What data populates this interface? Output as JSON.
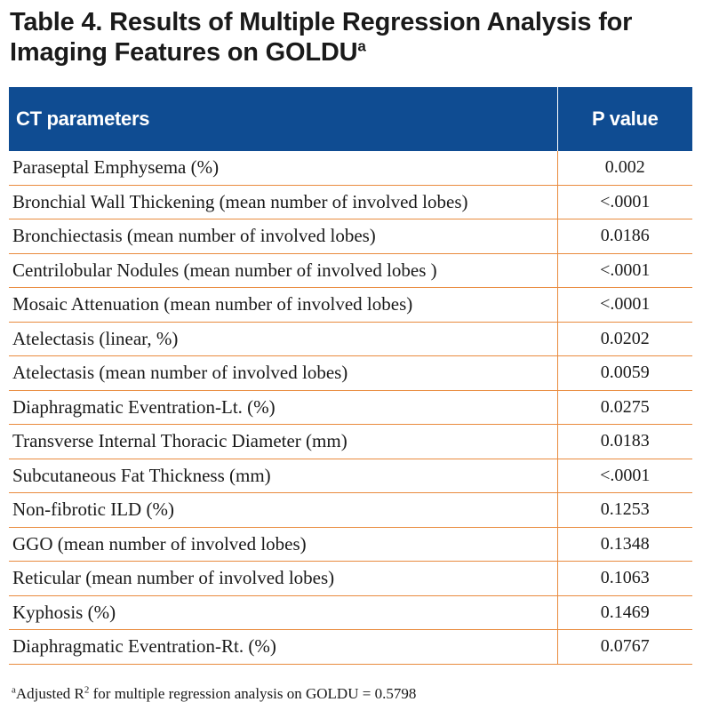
{
  "table": {
    "title": "Table 4. Results of Multiple Regression Analysis for Imaging Features on GOLDU",
    "title_superscript": "a",
    "header_color": "#0f4c92",
    "rule_color": "#e98b3e",
    "columns": [
      "CT parameters",
      "P value"
    ],
    "rows": [
      {
        "parameter": "Paraseptal Emphysema (%)",
        "p_value": "0.002"
      },
      {
        "parameter": "Bronchial Wall Thickening (mean number of involved lobes)",
        "p_value": "<.0001"
      },
      {
        "parameter": "Bronchiectasis (mean number of involved lobes)",
        "p_value": "0.0186"
      },
      {
        "parameter": "Centrilobular Nodules (mean number of involved lobes )",
        "p_value": "<.0001"
      },
      {
        "parameter": "Mosaic Attenuation (mean number of involved lobes)",
        "p_value": "<.0001"
      },
      {
        "parameter": "Atelectasis (linear, %)",
        "p_value": "0.0202"
      },
      {
        "parameter": "Atelectasis (mean number of involved lobes)",
        "p_value": "0.0059"
      },
      {
        "parameter": "Diaphragmatic Eventration-Lt. (%)",
        "p_value": "0.0275"
      },
      {
        "parameter": "Transverse Internal Thoracic Diameter (mm)",
        "p_value": "0.0183"
      },
      {
        "parameter": "Subcutaneous Fat Thickness (mm)",
        "p_value": "<.0001"
      },
      {
        "parameter": "Non-fibrotic ILD (%)",
        "p_value": "0.1253"
      },
      {
        "parameter": "GGO (mean number of involved lobes)",
        "p_value": "0.1348"
      },
      {
        "parameter": "Reticular (mean number of involved lobes)",
        "p_value": "0.1063"
      },
      {
        "parameter": "Kyphosis (%)",
        "p_value": "0.1469"
      },
      {
        "parameter": "Diaphragmatic Eventration-Rt. (%)",
        "p_value": "0.0767"
      }
    ],
    "footnote": {
      "marker": "a",
      "text_before": "Adjusted R",
      "superscript": "2",
      "text_after": " for multiple regression analysis on GOLDU = 0.5798"
    }
  }
}
